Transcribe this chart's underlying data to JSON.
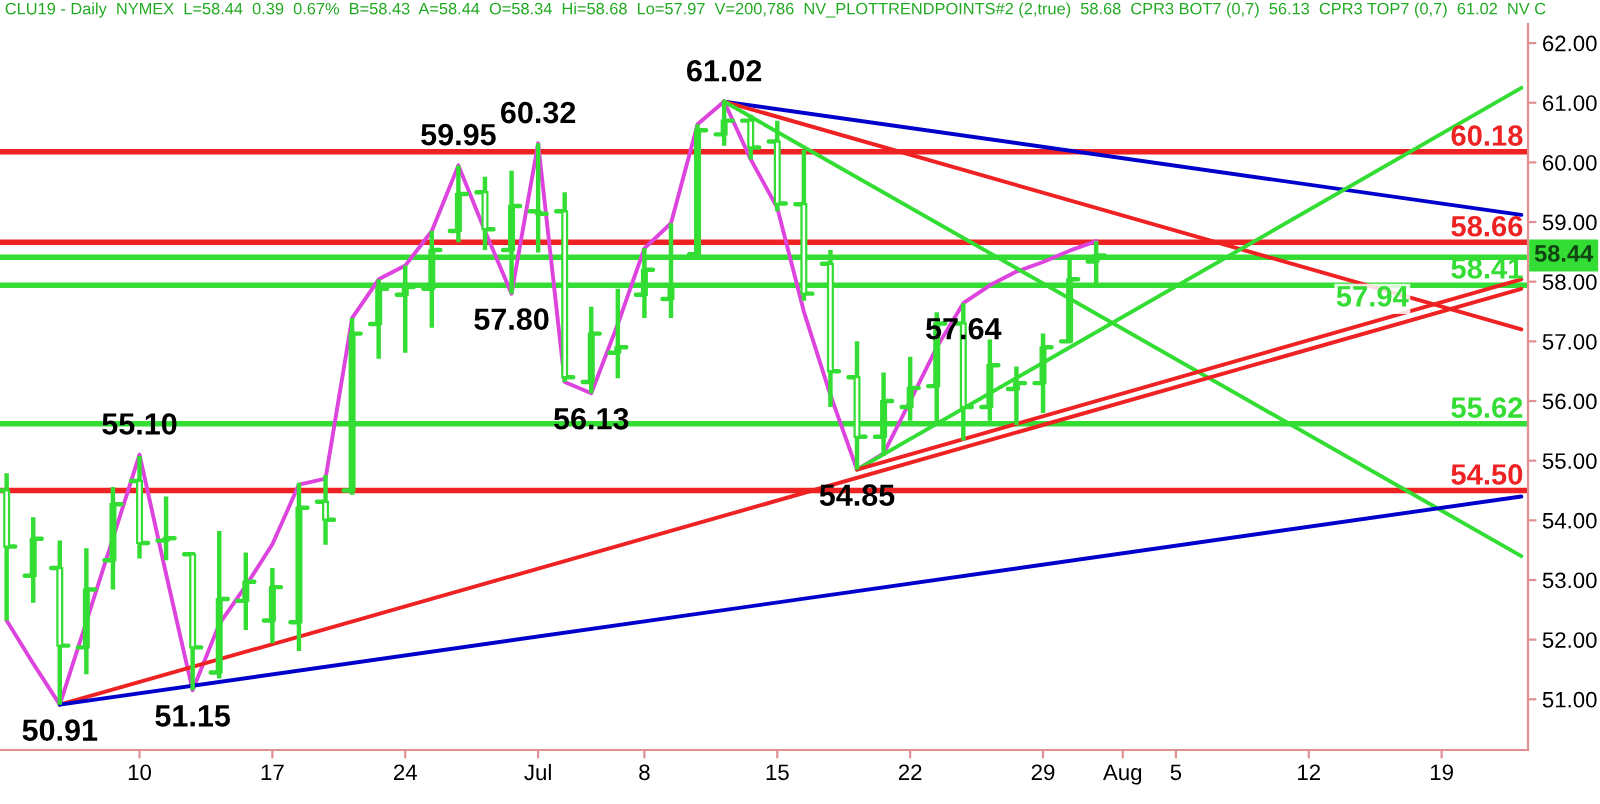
{
  "chart_data": {
    "type": "candlestick",
    "title": "CLU19 - Daily  NYMEX  L=58.44  0.39  0.67%  B=58.43  A=58.44  O=58.34  Hi=58.68  Lo=57.97  V=200,786  NV_PLOTTRENDPOINTS#2 (2,true)  58.68  CPR3 BOT7 (0,7)  56.13  CPR3 TOP7 (0,7)  61.02  NV C",
    "categories": [
      null,
      null,
      null,
      null,
      null,
      "10",
      null,
      null,
      null,
      null,
      "17",
      null,
      null,
      null,
      null,
      "24",
      null,
      null,
      null,
      null,
      "Jul",
      null,
      null,
      null,
      "8",
      null,
      null,
      null,
      null,
      "15",
      null,
      null,
      null,
      null,
      "22",
      null,
      null,
      null,
      null,
      "29",
      null,
      null,
      "Aug",
      null,
      "5",
      null,
      null,
      null,
      null,
      "12",
      null,
      null,
      null,
      null,
      "19",
      null,
      null,
      null
    ],
    "color": "#33dd33",
    "ohlc": [
      [
        54.5,
        54.79,
        52.32,
        53.56
      ],
      [
        53.07,
        54.05,
        52.62,
        53.69
      ],
      [
        53.2,
        53.66,
        50.91,
        51.9
      ],
      [
        51.87,
        53.53,
        51.42,
        52.84
      ],
      [
        53.33,
        54.56,
        52.84,
        54.27
      ],
      [
        54.66,
        55.08,
        53.36,
        53.62
      ],
      [
        53.66,
        54.4,
        53.33,
        53.7
      ],
      [
        53.43,
        53.46,
        51.15,
        51.87
      ],
      [
        51.45,
        53.82,
        51.35,
        52.68
      ],
      [
        52.65,
        53.46,
        52.16,
        52.97
      ],
      [
        52.32,
        53.2,
        51.94,
        52.88
      ],
      [
        52.29,
        54.63,
        51.81,
        54.21
      ],
      [
        54.31,
        54.76,
        53.59,
        54.01
      ],
      [
        54.5,
        57.39,
        54.43,
        57.13
      ],
      [
        57.29,
        58.04,
        56.71,
        57.88
      ],
      [
        57.78,
        58.27,
        56.81,
        57.91
      ],
      [
        57.88,
        58.85,
        57.23,
        58.53
      ],
      [
        58.85,
        59.95,
        58.66,
        59.47
      ],
      [
        59.5,
        59.76,
        58.53,
        58.88
      ],
      [
        58.53,
        59.86,
        57.8,
        59.27
      ],
      [
        59.18,
        60.32,
        58.49,
        59.14
      ],
      [
        59.18,
        59.5,
        56.32,
        56.4
      ],
      [
        56.32,
        57.58,
        56.13,
        57.13
      ],
      [
        56.81,
        57.88,
        56.38,
        56.9
      ],
      [
        57.78,
        58.56,
        57.39,
        58.2
      ],
      [
        57.71,
        58.98,
        57.39,
        57.94
      ],
      [
        58.46,
        60.64,
        58.46,
        60.54
      ],
      [
        60.47,
        61.02,
        60.28,
        60.7
      ],
      [
        60.7,
        60.8,
        60.05,
        60.25
      ],
      [
        60.35,
        60.7,
        59.18,
        59.31
      ],
      [
        59.3,
        60.21,
        57.68,
        57.8
      ],
      [
        58.3,
        58.53,
        55.9,
        56.5
      ],
      [
        56.4,
        57.0,
        54.85,
        55.4
      ],
      [
        55.4,
        56.48,
        55.08,
        56.0
      ],
      [
        55.9,
        56.74,
        55.67,
        56.22
      ],
      [
        56.25,
        57.49,
        55.6,
        57.3
      ],
      [
        57.3,
        57.64,
        55.34,
        55.9
      ],
      [
        55.9,
        57.03,
        55.67,
        56.6
      ],
      [
        56.2,
        56.58,
        55.6,
        56.3
      ],
      [
        56.3,
        57.13,
        55.8,
        56.9
      ],
      [
        57.0,
        58.43,
        56.97,
        58.04
      ],
      [
        58.34,
        58.68,
        57.97,
        58.44
      ],
      null,
      null,
      null,
      null,
      null,
      null,
      null,
      null,
      null,
      null,
      null,
      null,
      null,
      null,
      null,
      null
    ],
    "series": [
      {
        "type": "line",
        "color": "#dd44dd",
        "values": [
          52.32,
          51.6,
          50.91,
          52.3,
          53.7,
          55.1,
          53.1,
          51.15,
          52.26,
          52.9,
          53.6,
          54.6,
          54.7,
          57.39,
          58.04,
          58.27,
          58.85,
          59.95,
          58.85,
          57.8,
          60.32,
          56.32,
          56.13,
          57.29,
          58.56,
          58.98,
          60.64,
          61.02,
          60.05,
          59.24,
          57.5,
          56.1,
          54.85,
          55.12,
          56.0,
          56.9,
          57.64,
          57.94,
          58.17,
          58.33,
          58.52,
          58.68,
          null,
          null,
          null,
          null,
          null,
          null,
          null,
          null,
          null,
          null,
          null,
          null,
          null,
          null,
          null,
          null
        ],
        "value_labels": [
          null,
          null,
          "50.91",
          null,
          null,
          "55.10",
          null,
          "51.15",
          null,
          null,
          null,
          null,
          null,
          null,
          null,
          null,
          null,
          "59.95",
          null,
          "57.80",
          "60.32",
          null,
          "56.13",
          null,
          null,
          null,
          null,
          "61.02",
          null,
          null,
          null,
          null,
          "54.85",
          null,
          null,
          null,
          "57.64",
          null,
          null,
          null,
          null,
          null,
          null,
          null,
          null,
          null,
          null,
          null,
          null,
          null,
          null,
          null,
          null,
          null,
          null,
          null,
          null,
          null
        ]
      },
      {
        "type": "line",
        "color": "#0000cc",
        "values": [
          null,
          null,
          null,
          null,
          null,
          null,
          null,
          null,
          null,
          null,
          null,
          null,
          null,
          null,
          null,
          null,
          null,
          null,
          null,
          null,
          null,
          null,
          null,
          null,
          null,
          null,
          null,
          61.02,
          null,
          null,
          null,
          null,
          null,
          null,
          null,
          null,
          null,
          null,
          null,
          null,
          null,
          null,
          null,
          null,
          null,
          null,
          null,
          null,
          null,
          null,
          null,
          null,
          null,
          null,
          null,
          null,
          null,
          59.12
        ]
      },
      {
        "type": "line",
        "color": "#ee2222",
        "values": [
          null,
          null,
          null,
          null,
          null,
          null,
          null,
          null,
          null,
          null,
          null,
          null,
          null,
          null,
          null,
          null,
          null,
          null,
          null,
          null,
          null,
          null,
          null,
          null,
          null,
          null,
          null,
          61.02,
          null,
          null,
          null,
          null,
          null,
          null,
          null,
          null,
          null,
          null,
          null,
          null,
          null,
          null,
          null,
          null,
          null,
          null,
          null,
          null,
          null,
          null,
          null,
          null,
          null,
          null,
          null,
          null,
          null,
          57.2
        ]
      },
      {
        "type": "line",
        "color": "#33dd33",
        "values": [
          null,
          null,
          null,
          null,
          null,
          null,
          null,
          null,
          null,
          null,
          null,
          null,
          null,
          null,
          null,
          null,
          null,
          null,
          null,
          null,
          null,
          null,
          null,
          null,
          null,
          null,
          null,
          61.02,
          null,
          null,
          null,
          null,
          null,
          null,
          null,
          null,
          null,
          null,
          null,
          null,
          null,
          null,
          null,
          null,
          null,
          null,
          null,
          null,
          null,
          null,
          null,
          null,
          null,
          null,
          null,
          null,
          null,
          53.4
        ]
      },
      {
        "type": "line",
        "color": "#33dd33",
        "values": [
          null,
          null,
          null,
          null,
          null,
          null,
          null,
          null,
          null,
          null,
          null,
          null,
          null,
          null,
          null,
          null,
          null,
          null,
          null,
          null,
          null,
          null,
          null,
          null,
          null,
          null,
          null,
          null,
          null,
          null,
          null,
          null,
          54.85,
          null,
          null,
          null,
          null,
          null,
          null,
          null,
          null,
          null,
          null,
          null,
          null,
          null,
          null,
          null,
          null,
          null,
          null,
          null,
          null,
          null,
          null,
          null,
          null,
          61.25
        ]
      },
      {
        "type": "line",
        "color": "#ee2222",
        "values": [
          null,
          null,
          50.91,
          null,
          null,
          null,
          null,
          null,
          null,
          null,
          null,
          null,
          null,
          null,
          null,
          null,
          null,
          null,
          null,
          null,
          null,
          null,
          null,
          null,
          null,
          null,
          null,
          null,
          null,
          null,
          null,
          null,
          null,
          null,
          null,
          null,
          null,
          null,
          null,
          null,
          null,
          null,
          null,
          null,
          null,
          null,
          null,
          null,
          null,
          null,
          null,
          null,
          null,
          null,
          null,
          null,
          null,
          57.88
        ]
      },
      {
        "type": "line",
        "color": "#ee2222",
        "values": [
          null,
          null,
          null,
          null,
          null,
          null,
          null,
          null,
          null,
          null,
          null,
          null,
          null,
          null,
          null,
          null,
          null,
          null,
          null,
          null,
          null,
          null,
          null,
          null,
          null,
          null,
          null,
          null,
          null,
          null,
          null,
          null,
          54.85,
          null,
          null,
          null,
          null,
          null,
          null,
          null,
          null,
          null,
          null,
          null,
          null,
          null,
          null,
          null,
          null,
          null,
          null,
          null,
          null,
          null,
          null,
          null,
          null,
          58.04
        ]
      },
      {
        "type": "line",
        "color": "#0000cc",
        "values": [
          null,
          null,
          50.91,
          null,
          null,
          null,
          null,
          null,
          null,
          null,
          null,
          null,
          null,
          null,
          null,
          null,
          null,
          null,
          null,
          null,
          null,
          null,
          null,
          null,
          null,
          null,
          null,
          null,
          null,
          null,
          null,
          null,
          null,
          null,
          null,
          null,
          null,
          null,
          null,
          null,
          null,
          null,
          null,
          null,
          null,
          null,
          null,
          null,
          null,
          null,
          null,
          null,
          null,
          null,
          null,
          null,
          null,
          54.4
        ]
      }
    ],
    "ref_lines": [
      {
        "axis": "y",
        "value": 60.18,
        "label": "60.18",
        "color": "#ee2222"
      },
      {
        "axis": "y",
        "value": 58.66,
        "label": "58.66",
        "color": "#ee2222"
      },
      {
        "axis": "y",
        "value": 58.41,
        "label": "58.41",
        "color": "#33dd33"
      },
      {
        "axis": "y",
        "value": 57.94,
        "label": "57.94",
        "color": "#33dd33"
      },
      {
        "axis": "y",
        "value": 55.62,
        "label": "55.62",
        "color": "#33dd33"
      },
      {
        "axis": "y",
        "value": 54.5,
        "label": "54.50",
        "color": "#ee2222"
      }
    ],
    "annotations": [
      {
        "text": "58.44",
        "y": 58.44
      }
    ],
    "ylim": [
      50.15,
      62.32
    ],
    "yticks": [
      {
        "value": 51,
        "label": "51.00"
      },
      {
        "value": 52,
        "label": "52.00"
      },
      {
        "value": 53,
        "label": "53.00"
      },
      {
        "value": 54,
        "label": "54.00"
      },
      {
        "value": 55,
        "label": "55.00"
      },
      {
        "value": 56,
        "label": "56.00"
      },
      {
        "value": 57,
        "label": "57.00"
      },
      {
        "value": 58,
        "label": "58.00"
      },
      {
        "value": 59,
        "label": "59.00"
      },
      {
        "value": 60,
        "label": "60.00"
      },
      {
        "value": 61,
        "label": "61.00"
      },
      {
        "value": 62,
        "label": "62.00"
      }
    ]
  }
}
